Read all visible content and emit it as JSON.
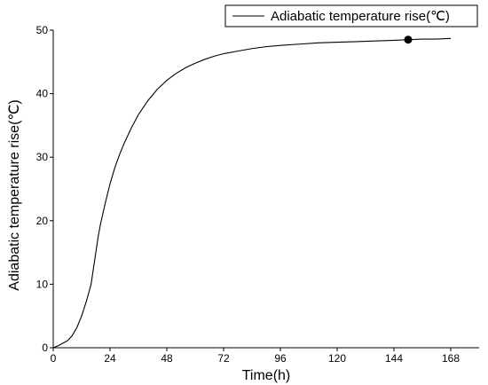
{
  "chart_data": {
    "type": "line",
    "xlabel": "Time(h)",
    "ylabel": "Adiabatic temperature rise(℃)",
    "xlim": [
      0,
      180
    ],
    "ylim": [
      0,
      50
    ],
    "x_ticks": [
      "0",
      "24",
      "48",
      "72",
      "96",
      "120",
      "144",
      "168"
    ],
    "y_ticks": [
      "0",
      "10",
      "20",
      "30",
      "40",
      "50"
    ],
    "grid": false,
    "legend_position": "top-right",
    "series": [
      {
        "name": "Adiabatic temperature rise(℃)",
        "color": "#000000",
        "x": [
          0,
          2,
          4,
          6,
          8,
          10,
          12,
          14,
          16,
          17,
          18,
          19,
          20,
          22,
          24,
          26,
          28,
          30,
          33,
          36,
          40,
          44,
          48,
          52,
          56,
          60,
          64,
          68,
          72,
          78,
          84,
          90,
          96,
          104,
          112,
          120,
          128,
          136,
          144,
          150,
          156,
          162,
          168
        ],
        "y": [
          0,
          0.3,
          0.7,
          1.1,
          1.9,
          3.2,
          5.0,
          7.3,
          10.0,
          12.5,
          15.0,
          17.5,
          19.5,
          22.8,
          25.8,
          28.3,
          30.4,
          32.2,
          34.6,
          36.7,
          38.9,
          40.7,
          42.1,
          43.2,
          44.1,
          44.8,
          45.4,
          45.9,
          46.3,
          46.7,
          47.1,
          47.4,
          47.6,
          47.8,
          48.0,
          48.1,
          48.2,
          48.3,
          48.4,
          48.5,
          48.6,
          48.6,
          48.7
        ]
      }
    ],
    "marker_point": {
      "x": 150,
      "y": 48.5
    }
  }
}
